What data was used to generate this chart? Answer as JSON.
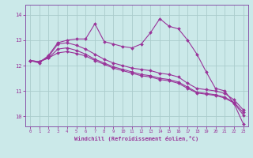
{
  "xlabel": "Windchill (Refroidissement éolien,°C)",
  "bg_color": "#cbe9e9",
  "grid_color": "#aacccc",
  "line_color": "#993399",
  "spine_color": "#8855aa",
  "x_ticks": [
    0,
    1,
    2,
    3,
    4,
    5,
    6,
    7,
    8,
    9,
    10,
    11,
    12,
    13,
    14,
    15,
    16,
    17,
    18,
    19,
    20,
    21,
    22,
    23
  ],
  "y_ticks": [
    10,
    11,
    12,
    13,
    14
  ],
  "ylim": [
    9.6,
    14.4
  ],
  "xlim": [
    -0.5,
    23.5
  ],
  "series": [
    [
      12.2,
      12.1,
      12.4,
      12.9,
      13.0,
      13.05,
      13.05,
      13.65,
      12.95,
      12.85,
      12.75,
      12.7,
      12.85,
      13.3,
      13.85,
      13.55,
      13.45,
      13.0,
      12.45,
      11.75,
      11.1,
      11.0,
      10.5,
      9.7
    ],
    [
      12.2,
      12.15,
      12.35,
      12.85,
      12.9,
      12.8,
      12.65,
      12.45,
      12.25,
      12.1,
      12.0,
      11.9,
      11.85,
      11.8,
      11.7,
      11.65,
      11.55,
      11.3,
      11.1,
      11.05,
      11.0,
      10.9,
      10.65,
      10.25
    ],
    [
      12.2,
      12.15,
      12.3,
      12.65,
      12.7,
      12.6,
      12.45,
      12.25,
      12.1,
      11.95,
      11.85,
      11.75,
      11.65,
      11.6,
      11.5,
      11.45,
      11.35,
      11.15,
      10.95,
      10.9,
      10.85,
      10.75,
      10.55,
      10.15
    ],
    [
      12.2,
      12.15,
      12.3,
      12.5,
      12.55,
      12.48,
      12.38,
      12.2,
      12.05,
      11.9,
      11.8,
      11.7,
      11.6,
      11.55,
      11.45,
      11.4,
      11.3,
      11.1,
      10.92,
      10.87,
      10.82,
      10.72,
      10.52,
      10.05
    ]
  ]
}
